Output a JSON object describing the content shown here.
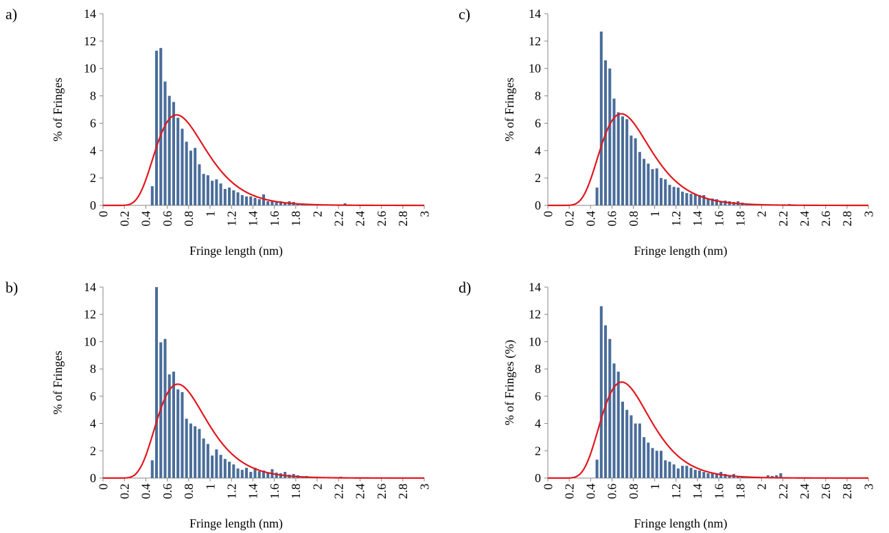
{
  "colors": {
    "bar": "#4a6d9a",
    "curve": "#e3141b",
    "axis": "#868686",
    "text": "#000000"
  },
  "chart_data": [
    {
      "panel": "a)",
      "type": "bar",
      "xlabel": "Fringe length (nm)",
      "ylabel": "% of Fringes",
      "xlim": [
        0,
        3
      ],
      "ylim": [
        0,
        14
      ],
      "xticks": [
        "0",
        "0.2",
        "0.4",
        "0.6",
        "0.8",
        "1",
        "1.2",
        "1.4",
        "1.6",
        "1.8",
        "2",
        "2.2",
        "2.4",
        "2.6",
        "2.8",
        "3"
      ],
      "yticks": [
        "0",
        "2",
        "4",
        "6",
        "8",
        "10",
        "12",
        "14"
      ],
      "grid": false,
      "bar_x": [
        0.46,
        0.5,
        0.54,
        0.58,
        0.62,
        0.66,
        0.7,
        0.74,
        0.78,
        0.82,
        0.86,
        0.9,
        0.94,
        0.98,
        1.02,
        1.06,
        1.1,
        1.14,
        1.18,
        1.22,
        1.26,
        1.3,
        1.34,
        1.38,
        1.42,
        1.46,
        1.5,
        1.54,
        1.58,
        1.62,
        1.66,
        1.7,
        1.74,
        1.78,
        1.82,
        1.86,
        1.9,
        1.94,
        1.98,
        2.02,
        2.06,
        2.1,
        2.14,
        2.18,
        2.22,
        2.26
      ],
      "bar_values": [
        1.4,
        11.3,
        11.5,
        9.05,
        8.0,
        7.55,
        6.4,
        5.6,
        4.65,
        4.0,
        4.2,
        3.0,
        2.3,
        2.2,
        1.8,
        1.9,
        1.6,
        1.2,
        1.3,
        1.1,
        0.95,
        0.75,
        0.65,
        0.65,
        0.55,
        0.45,
        0.8,
        0.3,
        0.3,
        0.25,
        0.3,
        0.2,
        0.3,
        0.25,
        0.1,
        0.05,
        0.05,
        0.05,
        0.05,
        0.05,
        0.0,
        0.0,
        0.0,
        0.0,
        0.0,
        0.15
      ],
      "fit": {
        "mu": -0.26,
        "sigma": 0.34,
        "amp": 4.1
      }
    },
    {
      "panel": "b)",
      "type": "bar",
      "xlabel": "Fringe length (nm)",
      "ylabel": "% of Fringes",
      "xlim": [
        0,
        3
      ],
      "ylim": [
        0,
        14
      ],
      "xticks": [
        "0",
        "0.2",
        "0.4",
        "0.6",
        "0.8",
        "1",
        "1.2",
        "1.4",
        "1.6",
        "1.8",
        "2",
        "2.2",
        "2.4",
        "2.6",
        "2.8",
        "3"
      ],
      "yticks": [
        "0",
        "2",
        "4",
        "6",
        "8",
        "10",
        "12",
        "14"
      ],
      "grid": false,
      "bar_x": [
        0.46,
        0.5,
        0.54,
        0.58,
        0.62,
        0.66,
        0.7,
        0.74,
        0.78,
        0.82,
        0.86,
        0.9,
        0.94,
        0.98,
        1.02,
        1.06,
        1.1,
        1.14,
        1.18,
        1.22,
        1.26,
        1.3,
        1.34,
        1.38,
        1.42,
        1.46,
        1.5,
        1.54,
        1.58,
        1.62,
        1.66,
        1.7,
        1.74,
        1.78,
        1.82,
        1.86,
        1.9,
        1.94,
        1.98,
        2.02,
        2.06,
        2.1,
        2.14,
        2.18,
        2.22
      ],
      "bar_values": [
        1.3,
        14.0,
        9.95,
        10.2,
        7.6,
        7.8,
        6.5,
        6.3,
        4.35,
        4.0,
        3.8,
        3.6,
        2.9,
        2.5,
        1.65,
        2.1,
        1.7,
        1.4,
        1.2,
        1.0,
        0.7,
        0.6,
        0.75,
        0.45,
        0.75,
        0.5,
        0.55,
        0.4,
        0.65,
        0.4,
        0.35,
        0.45,
        0.25,
        0.3,
        0.2,
        0.1,
        0.15,
        0.1,
        0.05,
        0.05,
        0.05,
        0.0,
        0.0,
        0.0,
        0.1
      ],
      "fit": {
        "mu": -0.25,
        "sigma": 0.33,
        "amp": 4.2
      }
    },
    {
      "panel": "c)",
      "type": "bar",
      "xlabel": "Fringe length (nm)",
      "ylabel": "% of Fringes",
      "xlim": [
        0,
        3
      ],
      "ylim": [
        0,
        14
      ],
      "xticks": [
        "0",
        "0.2",
        "0.4",
        "0.6",
        "0.8",
        "1",
        "1.2",
        "1.4",
        "1.6",
        "1.8",
        "2",
        "2.2",
        "2.4",
        "2.6",
        "2.8",
        "3"
      ],
      "yticks": [
        "0",
        "2",
        "4",
        "6",
        "8",
        "10",
        "12",
        "14"
      ],
      "grid": false,
      "bar_x": [
        0.46,
        0.5,
        0.54,
        0.58,
        0.62,
        0.66,
        0.7,
        0.74,
        0.78,
        0.82,
        0.86,
        0.9,
        0.94,
        0.98,
        1.02,
        1.06,
        1.1,
        1.14,
        1.18,
        1.22,
        1.26,
        1.3,
        1.34,
        1.38,
        1.42,
        1.46,
        1.5,
        1.54,
        1.58,
        1.62,
        1.66,
        1.7,
        1.74,
        1.78,
        1.82,
        1.86,
        1.9,
        1.94,
        1.98,
        2.02,
        2.06,
        2.1,
        2.14,
        2.18,
        2.22,
        2.26
      ],
      "bar_values": [
        1.3,
        12.7,
        10.6,
        10.0,
        7.8,
        6.8,
        6.5,
        6.3,
        5.1,
        4.9,
        3.9,
        3.4,
        3.05,
        2.65,
        2.7,
        2.0,
        1.9,
        1.5,
        1.35,
        1.3,
        1.0,
        0.9,
        0.85,
        0.8,
        0.75,
        0.75,
        0.45,
        0.5,
        0.45,
        0.3,
        0.35,
        0.3,
        0.25,
        0.3,
        0.2,
        0.1,
        0.05,
        0.05,
        0.05,
        0.05,
        0.05,
        0.0,
        0.0,
        0.0,
        0.0,
        0.1
      ],
      "fit": {
        "mu": -0.26,
        "sigma": 0.34,
        "amp": 4.15
      }
    },
    {
      "panel": "d)",
      "type": "bar",
      "xlabel": "Fringe length (nm)",
      "ylabel": "% of Fringes (%)",
      "xlim": [
        0,
        3
      ],
      "ylim": [
        0,
        14
      ],
      "xticks": [
        "0",
        "0.2",
        "0.4",
        "0.6",
        "0.8",
        "1",
        "1.2",
        "1.4",
        "1.6",
        "1.8",
        "2",
        "2.2",
        "2.4",
        "2.6",
        "2.8",
        "3"
      ],
      "yticks": [
        "0",
        "2",
        "4",
        "6",
        "8",
        "10",
        "12",
        "14"
      ],
      "grid": false,
      "bar_x": [
        0.46,
        0.5,
        0.54,
        0.58,
        0.62,
        0.66,
        0.7,
        0.74,
        0.78,
        0.82,
        0.86,
        0.9,
        0.94,
        0.98,
        1.02,
        1.06,
        1.1,
        1.14,
        1.18,
        1.22,
        1.26,
        1.3,
        1.34,
        1.38,
        1.42,
        1.46,
        1.5,
        1.54,
        1.58,
        1.62,
        1.66,
        1.7,
        1.74,
        1.78,
        1.82,
        1.86,
        1.9,
        1.94,
        1.98,
        2.02,
        2.06,
        2.1,
        2.14,
        2.18
      ],
      "bar_values": [
        1.35,
        12.6,
        11.2,
        10.2,
        8.4,
        7.8,
        5.6,
        5.0,
        4.6,
        4.0,
        4.0,
        3.0,
        2.6,
        2.2,
        2.0,
        2.0,
        1.3,
        1.2,
        1.0,
        0.7,
        0.9,
        0.9,
        0.75,
        0.6,
        0.55,
        0.45,
        0.35,
        0.35,
        0.3,
        0.45,
        0.3,
        0.2,
        0.3,
        0.1,
        0.1,
        0.05,
        0.05,
        0.05,
        0.05,
        0.05,
        0.2,
        0.15,
        0.2,
        0.35
      ],
      "fit": {
        "mu": -0.26,
        "sigma": 0.33,
        "amp": 4.25
      }
    }
  ]
}
